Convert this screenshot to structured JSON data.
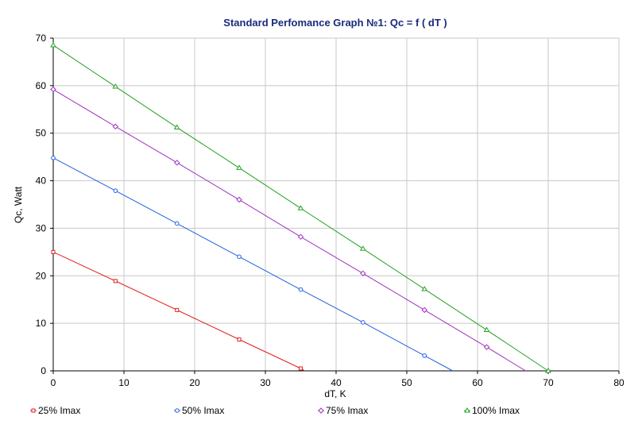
{
  "chart_data": {
    "type": "line",
    "title": "Standard Perfomance Graph №1: Qc = f ( dT )",
    "xlabel": "dT, K",
    "ylabel": "Qc, Watt",
    "xlim": [
      0,
      80
    ],
    "ylim": [
      0,
      70
    ],
    "xticks": [
      "0",
      "10",
      "20",
      "30",
      "40",
      "50",
      "60",
      "70",
      "80"
    ],
    "yticks": [
      "0",
      "10",
      "20",
      "30",
      "40",
      "50",
      "60",
      "70"
    ],
    "grid": true,
    "legend_position": "bottom",
    "series": [
      {
        "name": "25% Imax",
        "color": "#e02020",
        "marker": "square",
        "x": [
          0,
          8.8,
          17.5,
          26.3,
          35.0,
          35.6
        ],
        "y": [
          25.0,
          18.9,
          12.8,
          6.6,
          0.5,
          0
        ]
      },
      {
        "name": "50% Imax",
        "color": "#2060e0",
        "marker": "circle",
        "x": [
          0,
          8.8,
          17.5,
          26.3,
          35.0,
          43.8,
          52.5,
          56.5
        ],
        "y": [
          44.8,
          37.9,
          31.0,
          24.0,
          17.1,
          10.2,
          3.2,
          0
        ]
      },
      {
        "name": "75% Imax",
        "color": "#a030c0",
        "marker": "diamond",
        "x": [
          0,
          8.8,
          17.5,
          26.3,
          35.0,
          43.8,
          52.5,
          61.3,
          66.8
        ],
        "y": [
          59.2,
          51.4,
          43.8,
          36.0,
          28.2,
          20.5,
          12.8,
          5.0,
          0
        ]
      },
      {
        "name": "100% Imax",
        "color": "#20a020",
        "marker": "triangle",
        "x": [
          0,
          8.8,
          17.5,
          26.3,
          35.0,
          43.8,
          52.5,
          61.3,
          70.0
        ],
        "y": [
          68.5,
          59.8,
          51.2,
          42.7,
          34.2,
          25.7,
          17.2,
          8.6,
          0
        ]
      }
    ]
  }
}
